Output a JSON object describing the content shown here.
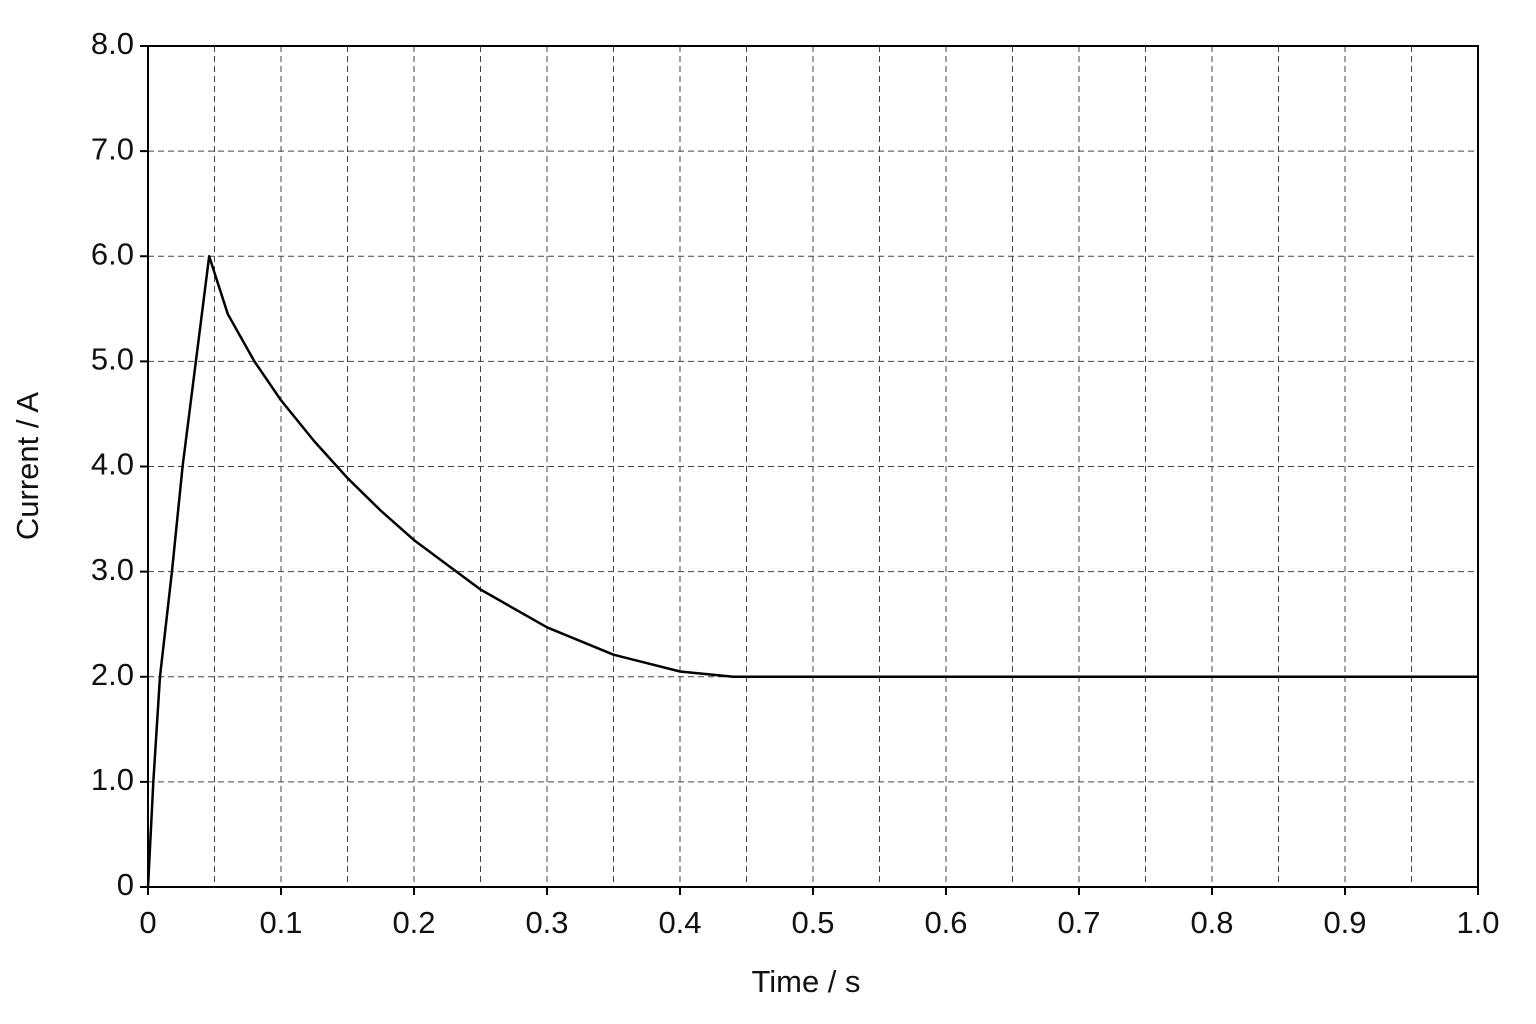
{
  "chart_data": {
    "type": "line",
    "xlabel": "Time / s",
    "ylabel": "Current / A",
    "x": [
      0,
      0.004,
      0.009,
      0.018,
      0.026,
      0.036,
      0.046,
      0.06,
      0.08,
      0.1,
      0.125,
      0.15,
      0.175,
      0.2,
      0.25,
      0.3,
      0.35,
      0.4,
      0.44,
      1.0
    ],
    "series": [
      {
        "color": "#000000",
        "values": [
          0,
          1.0,
          2.0,
          3.0,
          4.0,
          5.0,
          6.0,
          5.45,
          5.0,
          4.63,
          4.24,
          3.89,
          3.58,
          3.3,
          2.83,
          2.47,
          2.21,
          2.05,
          2.0,
          2.0
        ]
      }
    ],
    "xlim": [
      0,
      1.0
    ],
    "ylim": [
      0,
      8.0
    ],
    "xticks": [
      0,
      0.1,
      0.2,
      0.3,
      0.4,
      0.5,
      0.6,
      0.7,
      0.8,
      0.9,
      {
        "value": 1.0,
        "label": "1.0"
      }
    ],
    "x_minor_grid": [
      0.05,
      0.15,
      0.25,
      0.35,
      0.45,
      0.55,
      0.65,
      0.75,
      0.85,
      0.95
    ],
    "yticks": [
      0,
      {
        "value": 1,
        "label": "1.0"
      },
      {
        "value": 2,
        "label": "2.0"
      },
      {
        "value": 3,
        "label": "3.0"
      },
      {
        "value": 4,
        "label": "4.0"
      },
      {
        "value": 5,
        "label": "5.0"
      },
      {
        "value": 6,
        "label": "6.0"
      },
      {
        "value": 7,
        "label": "7.0"
      },
      {
        "value": 8,
        "label": "8.0"
      }
    ],
    "grid": true
  }
}
